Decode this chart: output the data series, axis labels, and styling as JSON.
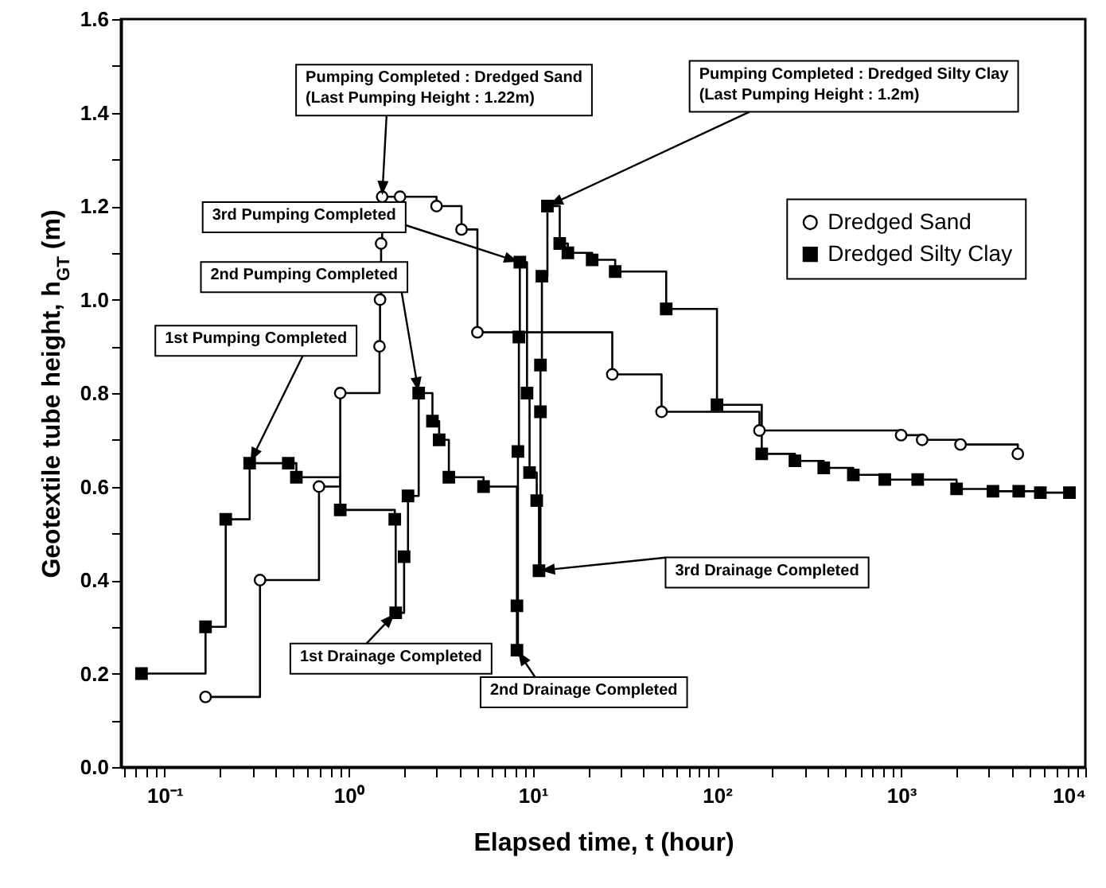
{
  "chart_data": {
    "type": "step",
    "xlabel": "Elapsed time, t (hour)",
    "ylabel": "Geotextile tube height, h$_{GT}$ (m)",
    "log": "x",
    "xlim": [
      0.058,
      10000
    ],
    "xticks": [
      {
        "value": 0.06,
        "label": null
      },
      {
        "value": 0.07,
        "label": null
      },
      {
        "value": 0.08,
        "label": null
      },
      {
        "value": 0.09,
        "label": null
      },
      {
        "value": 0.1,
        "label": "10⁻¹"
      },
      {
        "value": 0.2,
        "label": null
      },
      {
        "value": 0.3,
        "label": null
      },
      {
        "value": 0.4,
        "label": null
      },
      {
        "value": 0.5,
        "label": null
      },
      {
        "value": 0.6,
        "label": null
      },
      {
        "value": 0.7,
        "label": null
      },
      {
        "value": 0.8,
        "label": null
      },
      {
        "value": 0.9,
        "label": null
      },
      {
        "value": 1,
        "label": "10⁰"
      },
      {
        "value": 2,
        "label": null
      },
      {
        "value": 3,
        "label": null
      },
      {
        "value": 4,
        "label": null
      },
      {
        "value": 5,
        "label": null
      },
      {
        "value": 6,
        "label": null
      },
      {
        "value": 7,
        "label": null
      },
      {
        "value": 8,
        "label": null
      },
      {
        "value": 9,
        "label": null
      },
      {
        "value": 10,
        "label": "10¹"
      },
      {
        "value": 20,
        "label": null
      },
      {
        "value": 30,
        "label": null
      },
      {
        "value": 40,
        "label": null
      },
      {
        "value": 50,
        "label": null
      },
      {
        "value": 60,
        "label": null
      },
      {
        "value": 70,
        "label": null
      },
      {
        "value": 80,
        "label": null
      },
      {
        "value": 90,
        "label": null
      },
      {
        "value": 100,
        "label": "10²"
      },
      {
        "value": 200,
        "label": null
      },
      {
        "value": 300,
        "label": null
      },
      {
        "value": 400,
        "label": null
      },
      {
        "value": 500,
        "label": null
      },
      {
        "value": 600,
        "label": null
      },
      {
        "value": 700,
        "label": null
      },
      {
        "value": 800,
        "label": null
      },
      {
        "value": 900,
        "label": null
      },
      {
        "value": 1000,
        "label": "10³"
      },
      {
        "value": 2000,
        "label": null
      },
      {
        "value": 3000,
        "label": null
      },
      {
        "value": 4000,
        "label": null
      },
      {
        "value": 5000,
        "label": null
      },
      {
        "value": 6000,
        "label": null
      },
      {
        "value": 7000,
        "label": null
      },
      {
        "value": 8000,
        "label": null
      },
      {
        "value": 9000,
        "label": null
      },
      {
        "value": 10000,
        "label": "10⁴"
      }
    ],
    "ylim": [
      0,
      1.6
    ],
    "yticks": [
      {
        "value": 0,
        "label": "0.0"
      },
      {
        "value": 0.1,
        "label": null
      },
      {
        "value": 0.2,
        "label": "0.2"
      },
      {
        "value": 0.3,
        "label": null
      },
      {
        "value": 0.4,
        "label": "0.4"
      },
      {
        "value": 0.5,
        "label": null
      },
      {
        "value": 0.6,
        "label": "0.6"
      },
      {
        "value": 0.7,
        "label": null
      },
      {
        "value": 0.8,
        "label": "0.8"
      },
      {
        "value": 0.9,
        "label": null
      },
      {
        "value": 1,
        "label": "1.0"
      },
      {
        "value": 1.1,
        "label": null
      },
      {
        "value": 1.2,
        "label": "1.2"
      },
      {
        "value": 1.3,
        "label": null
      },
      {
        "value": 1.4,
        "label": "1.4"
      },
      {
        "value": 1.5,
        "label": null
      },
      {
        "value": 1.6,
        "label": "1.6"
      }
    ],
    "grid": false,
    "legend": "top right",
    "line_style": "solid",
    "series": [
      {
        "name": "Dredged Sand",
        "type": "step",
        "marker": "circle",
        "color": "#000000",
        "x": [
          0.167,
          0.33,
          0.69,
          0.9,
          1.47,
          1.48,
          1.5,
          1.52,
          1.9,
          3.0,
          4.1,
          5.0,
          27,
          50,
          170,
          1000,
          1300,
          2100,
          4300
        ],
        "values": [
          0.15,
          0.4,
          0.6,
          0.8,
          0.9,
          1.0,
          1.12,
          1.22,
          1.22,
          1.2,
          1.15,
          0.93,
          0.84,
          0.76,
          0.72,
          0.71,
          0.7,
          0.69,
          0.67
        ]
      },
      {
        "name": "Dredged Silty Clay",
        "type": "step",
        "marker": "square",
        "color": "#000000",
        "x": [
          0.075,
          0.167,
          0.215,
          0.29,
          0.47,
          0.52,
          0.9,
          1.78,
          1.8,
          2.0,
          2.1,
          2.4,
          2.85,
          3.1,
          3.5,
          5.4,
          8.2,
          8.2,
          8.3,
          8.4,
          8.5,
          9.3,
          9.6,
          10.5,
          10.8,
          11,
          11,
          11.2,
          12,
          14,
          15.5,
          21,
          28,
          53,
          100,
          175,
          265,
          380,
          550,
          815,
          1230,
          2000,
          3150,
          4350,
          5700,
          8200
        ],
        "values": [
          0.2,
          0.3,
          0.53,
          0.65,
          0.65,
          0.62,
          0.55,
          0.53,
          0.33,
          0.45,
          0.58,
          0.8,
          0.74,
          0.7,
          0.62,
          0.6,
          0.345,
          0.25,
          0.675,
          0.92,
          1.08,
          0.8,
          0.63,
          0.57,
          0.42,
          0.76,
          0.86,
          1.05,
          1.2,
          1.12,
          1.1,
          1.085,
          1.06,
          0.98,
          0.775,
          0.67,
          0.655,
          0.64,
          0.625,
          0.615,
          0.615,
          0.595,
          0.59,
          0.59,
          0.587,
          0.587
        ]
      }
    ],
    "annotations": [
      {
        "text": "Pumping Completed : Dredged Sand\n(Last Pumping Height : 1.22m)",
        "x": 1.52,
        "y": 1.22
      },
      {
        "text": "Pumping Completed : Dredged Silty Clay\n(Last Pumping Height : 1.2m)",
        "x": 12,
        "y": 1.2
      },
      {
        "text": "3rd Pumping Completed",
        "x": 8.5,
        "y": 1.08
      },
      {
        "text": "2nd Pumping Completed",
        "x": 2.4,
        "y": 0.8
      },
      {
        "text": "1st Pumping Completed",
        "x": 0.29,
        "y": 0.65
      },
      {
        "text": "1st Drainage Completed",
        "x": 1.8,
        "y": 0.33
      },
      {
        "text": "2nd Drainage Completed",
        "x": 8.2,
        "y": 0.25
      },
      {
        "text": "3rd Drainage Completed",
        "x": 10.8,
        "y": 0.42
      }
    ]
  }
}
